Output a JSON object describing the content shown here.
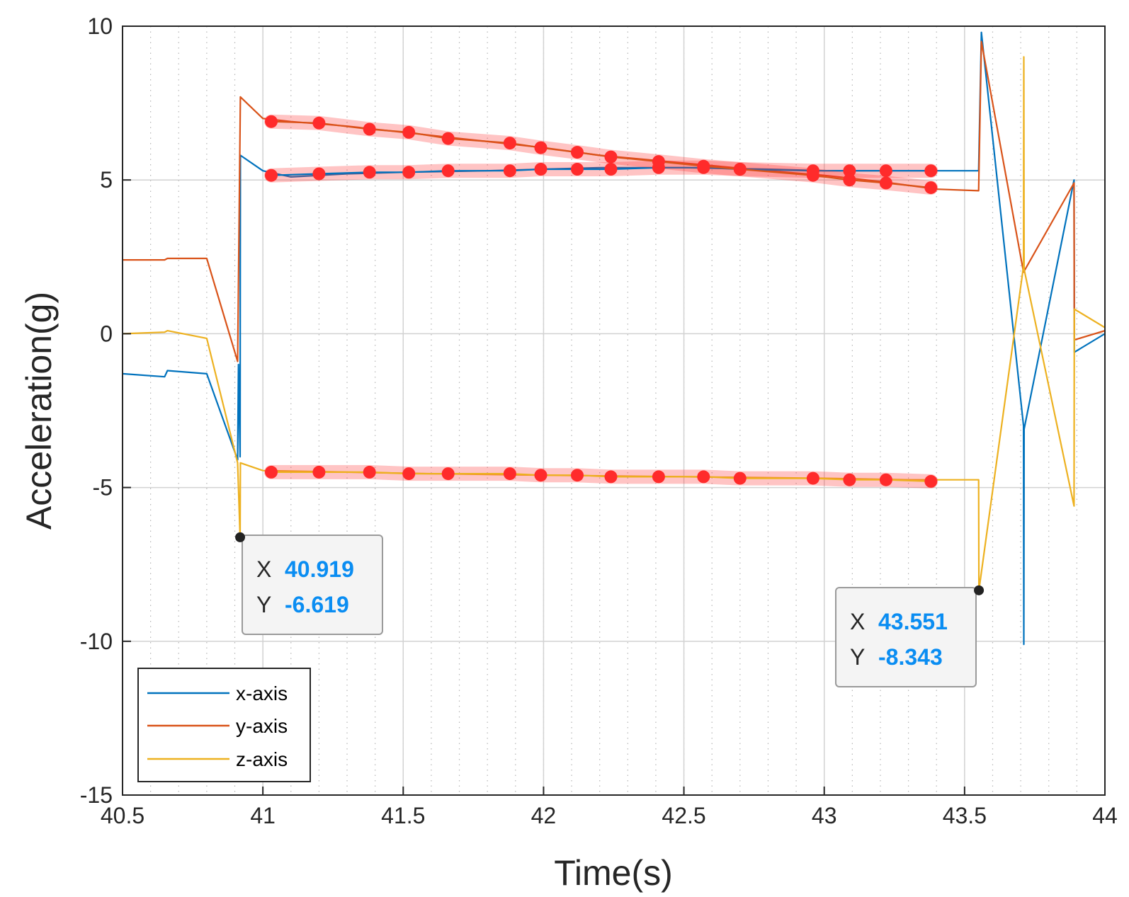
{
  "chart_data": {
    "type": "line",
    "title": "",
    "xlabel": "Time(s)",
    "ylabel": "Acceleration(g)",
    "xlim": [
      40.5,
      44
    ],
    "ylim": [
      -15,
      10
    ],
    "xticks": [
      "40.5",
      "41",
      "41.5",
      "42",
      "42.5",
      "43",
      "43.5",
      "44"
    ],
    "yticks": [
      "-15",
      "-10",
      "-5",
      "0",
      "5",
      "10"
    ],
    "grid": true,
    "minor_grid": true,
    "legend_position": "bottom-left",
    "series": [
      {
        "name": "x-axis",
        "color": "#0072BD",
        "points": [
          [
            40.5,
            -1.3
          ],
          [
            40.65,
            -1.4
          ],
          [
            40.66,
            -1.2
          ],
          [
            40.8,
            -1.3
          ],
          [
            40.91,
            -4.1
          ],
          [
            40.913,
            -1.0
          ],
          [
            40.919,
            -4.0
          ],
          [
            40.92,
            5.8
          ],
          [
            41.0,
            5.3
          ],
          [
            41.1,
            5.1
          ],
          [
            41.3,
            5.2
          ],
          [
            41.5,
            5.25
          ],
          [
            41.8,
            5.3
          ],
          [
            42.0,
            5.35
          ],
          [
            42.2,
            5.4
          ],
          [
            42.5,
            5.4
          ],
          [
            42.8,
            5.35
          ],
          [
            43.0,
            5.3
          ],
          [
            43.3,
            5.3
          ],
          [
            43.5,
            5.3
          ],
          [
            43.55,
            5.3
          ],
          [
            43.56,
            9.8
          ],
          [
            43.71,
            -3.0
          ],
          [
            43.711,
            -10.1
          ],
          [
            43.712,
            -3.1
          ],
          [
            43.89,
            5.0
          ],
          [
            43.891,
            -0.6
          ],
          [
            44.0,
            0.0
          ]
        ]
      },
      {
        "name": "y-axis",
        "color": "#D95319",
        "points": [
          [
            40.5,
            2.4
          ],
          [
            40.65,
            2.4
          ],
          [
            40.66,
            2.45
          ],
          [
            40.8,
            2.45
          ],
          [
            40.91,
            -0.9
          ],
          [
            40.92,
            7.7
          ],
          [
            41.0,
            7.0
          ],
          [
            41.1,
            6.9
          ],
          [
            41.3,
            6.75
          ],
          [
            41.5,
            6.55
          ],
          [
            41.8,
            6.25
          ],
          [
            42.0,
            6.05
          ],
          [
            42.2,
            5.8
          ],
          [
            42.5,
            5.55
          ],
          [
            42.8,
            5.3
          ],
          [
            43.0,
            5.15
          ],
          [
            43.2,
            4.95
          ],
          [
            43.4,
            4.7
          ],
          [
            43.55,
            4.65
          ],
          [
            43.56,
            9.5
          ],
          [
            43.71,
            2.0
          ],
          [
            43.89,
            4.9
          ],
          [
            43.891,
            -0.2
          ],
          [
            44.0,
            0.1
          ]
        ]
      },
      {
        "name": "z-axis",
        "color": "#EDB120",
        "points": [
          [
            40.5,
            0.0
          ],
          [
            40.65,
            0.05
          ],
          [
            40.66,
            0.1
          ],
          [
            40.8,
            -0.15
          ],
          [
            40.91,
            -4.2
          ],
          [
            40.919,
            -6.619
          ],
          [
            40.92,
            -4.2
          ],
          [
            41.0,
            -4.45
          ],
          [
            41.3,
            -4.5
          ],
          [
            41.6,
            -4.55
          ],
          [
            42.0,
            -4.6
          ],
          [
            42.5,
            -4.65
          ],
          [
            43.0,
            -4.7
          ],
          [
            43.3,
            -4.75
          ],
          [
            43.55,
            -4.75
          ],
          [
            43.551,
            -8.343
          ],
          [
            43.71,
            2.2
          ],
          [
            43.711,
            9.0
          ],
          [
            43.712,
            2.1
          ],
          [
            43.89,
            -5.6
          ],
          [
            43.891,
            0.8
          ],
          [
            44.0,
            0.2
          ]
        ]
      }
    ],
    "highlighted_points": [
      {
        "series": "x-axis",
        "points": [
          [
            41.03,
            5.15
          ],
          [
            41.2,
            5.2
          ],
          [
            41.38,
            5.25
          ],
          [
            41.52,
            5.25
          ],
          [
            41.66,
            5.3
          ],
          [
            41.88,
            5.3
          ],
          [
            41.99,
            5.35
          ],
          [
            42.12,
            5.35
          ],
          [
            42.24,
            5.35
          ],
          [
            42.41,
            5.4
          ],
          [
            42.57,
            5.4
          ],
          [
            42.7,
            5.35
          ],
          [
            42.96,
            5.3
          ],
          [
            43.09,
            5.3
          ],
          [
            43.22,
            5.3
          ],
          [
            43.38,
            5.3
          ]
        ]
      },
      {
        "series": "y-axis",
        "points": [
          [
            41.03,
            6.9
          ],
          [
            41.2,
            6.85
          ],
          [
            41.38,
            6.65
          ],
          [
            41.52,
            6.55
          ],
          [
            41.66,
            6.35
          ],
          [
            41.88,
            6.2
          ],
          [
            41.99,
            6.05
          ],
          [
            42.12,
            5.9
          ],
          [
            42.24,
            5.75
          ],
          [
            42.41,
            5.6
          ],
          [
            42.57,
            5.45
          ],
          [
            42.7,
            5.35
          ],
          [
            42.96,
            5.15
          ],
          [
            43.09,
            5.0
          ],
          [
            43.22,
            4.9
          ],
          [
            43.38,
            4.75
          ]
        ]
      },
      {
        "series": "z-axis",
        "points": [
          [
            41.03,
            -4.5
          ],
          [
            41.2,
            -4.5
          ],
          [
            41.38,
            -4.5
          ],
          [
            41.52,
            -4.55
          ],
          [
            41.66,
            -4.55
          ],
          [
            41.88,
            -4.55
          ],
          [
            41.99,
            -4.6
          ],
          [
            42.12,
            -4.6
          ],
          [
            42.24,
            -4.65
          ],
          [
            42.41,
            -4.65
          ],
          [
            42.57,
            -4.65
          ],
          [
            42.7,
            -4.7
          ],
          [
            42.96,
            -4.7
          ],
          [
            43.09,
            -4.75
          ],
          [
            43.22,
            -4.75
          ],
          [
            43.38,
            -4.8
          ]
        ]
      }
    ],
    "datatips": [
      {
        "x": 40.919,
        "y": -6.619,
        "x_text": "40.919",
        "y_text": "-6.619",
        "box_anchor": "bottom-right"
      },
      {
        "x": 43.551,
        "y": -8.343,
        "x_text": "43.551",
        "y_text": "-8.343",
        "box_anchor": "bottom-left"
      }
    ],
    "datatip_labels": {
      "x": "X",
      "y": "Y"
    },
    "highlight_color": "#FF2B2B",
    "datatip_value_color": "#0A8DF2"
  }
}
